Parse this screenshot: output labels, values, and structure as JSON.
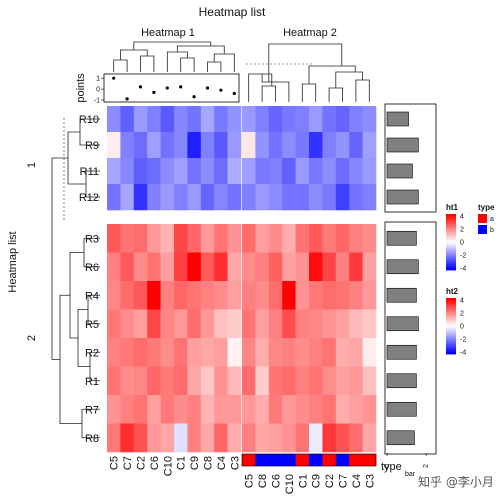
{
  "chart_data": {
    "type": "heatmap",
    "title": "Heatmap list",
    "row_title": "Heatmap list",
    "watermark": "知乎 @李小月",
    "row_groups": [
      {
        "label": "1",
        "rows": [
          "R10",
          "R9",
          "R11",
          "R12"
        ]
      },
      {
        "label": "2",
        "rows": [
          "R3",
          "R6",
          "R4",
          "R5",
          "R2",
          "R1",
          "R7",
          "R8"
        ]
      }
    ],
    "heatmap1": {
      "title": "Heatmap 1",
      "columns": [
        "C5",
        "C7",
        "C2",
        "C6",
        "C10",
        "C1",
        "C9",
        "C8",
        "C4",
        "C3"
      ],
      "values": [
        [
          -1.8,
          -2.5,
          -1.6,
          -2.0,
          -2.6,
          -1.9,
          -2.2,
          -1.4,
          -2.1,
          -1.7
        ],
        [
          0.3,
          -2.0,
          -2.3,
          -1.5,
          -2.2,
          -1.9,
          -3.5,
          -2.0,
          -2.6,
          -1.6
        ],
        [
          -1.4,
          -1.9,
          -2.5,
          -2.3,
          -1.8,
          -1.5,
          -2.2,
          -1.8,
          -2.3,
          -1.3
        ],
        [
          -2.2,
          -1.4,
          -3.2,
          -2.0,
          -1.6,
          -2.0,
          -1.6,
          -2.4,
          -1.9,
          -2.2
        ],
        [
          2.6,
          2.2,
          2.3,
          1.6,
          1.2,
          2.9,
          2.4,
          1.6,
          2.2,
          1.7
        ],
        [
          2.0,
          2.6,
          1.8,
          2.2,
          1.5,
          3.0,
          4.0,
          2.6,
          3.3,
          1.4
        ],
        [
          1.9,
          2.3,
          2.6,
          4.2,
          2.0,
          2.4,
          2.2,
          2.0,
          1.8,
          1.5
        ],
        [
          2.1,
          1.8,
          1.5,
          2.9,
          1.9,
          1.6,
          2.3,
          1.6,
          1.0,
          0.8
        ],
        [
          2.0,
          2.1,
          2.3,
          2.1,
          1.8,
          2.2,
          1.5,
          1.4,
          1.5,
          0.2
        ],
        [
          2.2,
          1.8,
          1.9,
          2.4,
          2.1,
          2.3,
          1.4,
          0.9,
          1.7,
          1.1
        ],
        [
          1.7,
          2.0,
          2.2,
          1.5,
          2.1,
          1.8,
          2.0,
          1.2,
          1.6,
          1.6
        ],
        [
          2.1,
          3.3,
          2.7,
          1.6,
          1.4,
          -0.5,
          2.0,
          1.4,
          2.4,
          1.3
        ]
      ],
      "legend": {
        "title": "ht1",
        "ticks": [
          4,
          2,
          0,
          -2,
          -4
        ]
      }
    },
    "heatmap2": {
      "title": "Heatmap 2",
      "columns": [
        "C5",
        "C8",
        "C6",
        "C10",
        "C1",
        "C9",
        "C2",
        "C7",
        "C4",
        "C3"
      ],
      "type_annotation": [
        "a",
        "b",
        "b",
        "b",
        "a",
        "b",
        "a",
        "b",
        "a",
        "a"
      ],
      "values": [
        [
          -1.6,
          -2.0,
          -2.4,
          -2.1,
          -2.0,
          -1.6,
          -2.2,
          -2.4,
          -2.0,
          -1.8
        ],
        [
          0.4,
          -1.7,
          -2.2,
          -1.8,
          -2.1,
          -3.2,
          -2.0,
          -1.7,
          -2.4,
          -1.5
        ],
        [
          -1.5,
          -2.1,
          -2.0,
          -2.5,
          -1.6,
          -2.1,
          -1.8,
          -2.3,
          -1.9,
          -1.6
        ],
        [
          -2.0,
          -1.6,
          -1.8,
          -2.2,
          -2.2,
          -1.8,
          -2.1,
          -3.0,
          -2.2,
          -2.0
        ],
        [
          2.3,
          1.5,
          1.8,
          1.3,
          2.2,
          2.6,
          2.1,
          2.4,
          2.0,
          1.8
        ],
        [
          1.8,
          2.0,
          2.5,
          1.5,
          1.7,
          3.8,
          2.9,
          2.0,
          3.1,
          1.5
        ],
        [
          2.0,
          1.8,
          2.3,
          4.1,
          1.7,
          2.1,
          2.3,
          2.2,
          2.0,
          1.6
        ],
        [
          2.2,
          1.5,
          2.0,
          2.8,
          2.0,
          1.9,
          1.7,
          1.5,
          1.1,
          0.9
        ],
        [
          1.9,
          1.3,
          1.9,
          2.0,
          1.8,
          2.0,
          2.2,
          1.3,
          1.4,
          0.3
        ],
        [
          2.3,
          0.8,
          2.2,
          2.3,
          2.0,
          2.2,
          1.8,
          1.5,
          1.6,
          1.0
        ],
        [
          1.6,
          1.3,
          2.1,
          1.6,
          1.8,
          2.0,
          2.2,
          1.3,
          1.5,
          1.7
        ],
        [
          2.0,
          1.4,
          1.5,
          1.7,
          2.2,
          -0.3,
          3.1,
          2.7,
          2.3,
          1.4
        ]
      ],
      "legend": {
        "title": "ht2",
        "ticks": [
          4,
          2,
          0,
          -2,
          -4
        ]
      }
    },
    "points_annotation": {
      "label": "points",
      "ticks": [
        1,
        0,
        -1
      ],
      "ylim": [
        -1,
        1.2
      ],
      "values": [
        1.0,
        -0.9,
        0.2,
        -0.3,
        0.1,
        0.2,
        -0.7,
        0.1,
        -0.1,
        -0.4
      ]
    },
    "bar_annotation": {
      "label": "bar",
      "ticks": [
        0,
        2
      ],
      "xlim": [
        0,
        2.4
      ],
      "values": [
        1.1,
        1.6,
        1.3,
        1.6,
        1.5,
        1.6,
        1.5,
        1.6,
        1.5,
        1.5,
        1.5,
        1.4
      ]
    },
    "type_legend": {
      "title": "type",
      "label": "type",
      "items": [
        {
          "label": "a",
          "color": "#ff0000"
        },
        {
          "label": "b",
          "color": "#0000ff"
        }
      ]
    },
    "colors": {
      "low": "#0000ff",
      "mid": "#ffffff",
      "high": "#ff0000"
    }
  }
}
